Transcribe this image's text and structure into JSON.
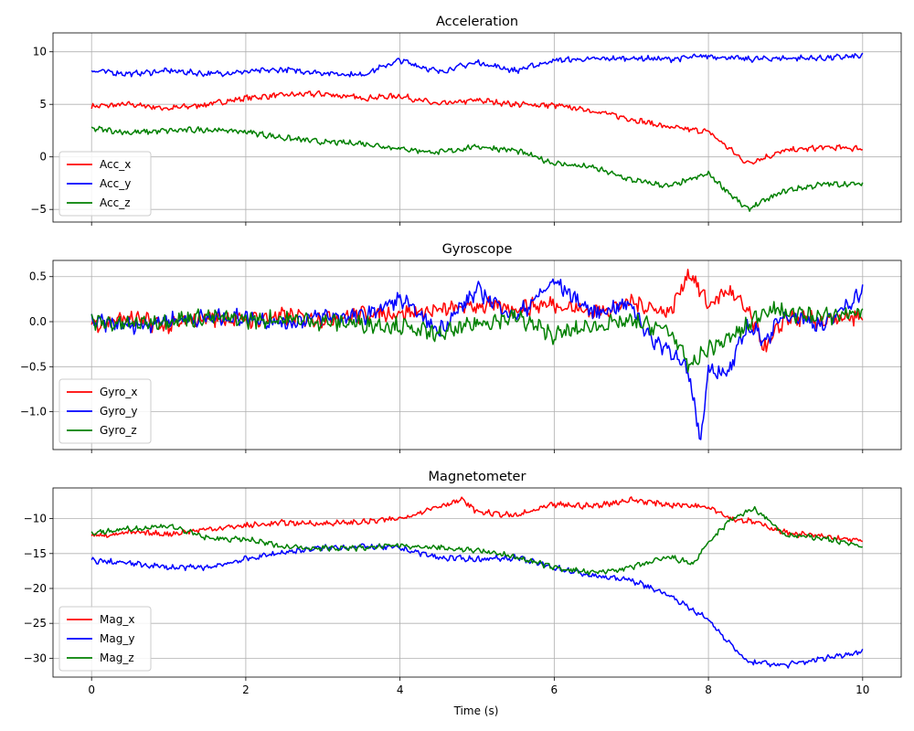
{
  "figure": {
    "xlabel": "Time (s)"
  },
  "chart_data": [
    {
      "type": "line",
      "title": "Acceleration",
      "xlim": [
        -0.5,
        10.5
      ],
      "ylim": [
        -6.2,
        11.8
      ],
      "xticks": [
        0,
        2,
        4,
        6,
        8,
        10
      ],
      "yticks": [
        -5,
        0,
        5,
        10
      ],
      "grid": true,
      "legend": "lower-left",
      "series": [
        {
          "name": "Acc_x",
          "color": "#ff0000",
          "x": [
            0,
            0.5,
            1,
            1.5,
            2,
            2.5,
            3,
            3.5,
            4,
            4.5,
            5,
            5.5,
            6,
            6.5,
            7,
            7.5,
            8,
            8.5,
            9,
            9.5,
            10
          ],
          "y": [
            4.8,
            5.0,
            4.6,
            5.0,
            5.6,
            5.9,
            6.0,
            5.6,
            5.8,
            5.0,
            5.4,
            5.0,
            4.9,
            4.4,
            3.6,
            2.8,
            2.4,
            -0.6,
            0.6,
            0.9,
            0.8
          ]
        },
        {
          "name": "Acc_y",
          "color": "#0000ff",
          "x": [
            0,
            0.5,
            1,
            1.5,
            2,
            2.5,
            3,
            3.5,
            4,
            4.5,
            5,
            5.5,
            6,
            6.5,
            7,
            7.5,
            8,
            8.5,
            9,
            9.5,
            10
          ],
          "y": [
            8.2,
            7.9,
            8.2,
            7.9,
            8.1,
            8.3,
            8.0,
            7.8,
            9.2,
            8.1,
            9.0,
            8.2,
            9.2,
            9.3,
            9.4,
            9.3,
            9.6,
            9.3,
            9.4,
            9.4,
            9.6
          ]
        },
        {
          "name": "Acc_z",
          "color": "#008000",
          "x": [
            0,
            0.5,
            1,
            1.5,
            2,
            2.5,
            3,
            3.5,
            4,
            4.5,
            5,
            5.5,
            6,
            6.5,
            7,
            7.5,
            8,
            8.5,
            9,
            9.5,
            10
          ],
          "y": [
            2.7,
            2.3,
            2.5,
            2.6,
            2.4,
            1.8,
            1.4,
            1.3,
            0.8,
            0.4,
            1.0,
            0.6,
            -0.6,
            -1.0,
            -2.2,
            -2.8,
            -1.6,
            -5.0,
            -3.2,
            -2.6,
            -2.6
          ]
        }
      ]
    },
    {
      "type": "line",
      "title": "Gyroscope",
      "xlim": [
        -0.5,
        10.5
      ],
      "ylim": [
        -1.42,
        0.68
      ],
      "xticks": [
        0,
        2,
        4,
        6,
        8,
        10
      ],
      "yticks": [
        -1.0,
        -0.5,
        0.0,
        0.5
      ],
      "ytick_labels": [
        "−1.0",
        "−0.5",
        "0.0",
        "0.5"
      ],
      "grid": true,
      "legend": "lower-left",
      "series": [
        {
          "name": "Gyro_x",
          "color": "#ff0000",
          "x": [
            0,
            0.5,
            1,
            1.5,
            2,
            2.5,
            3,
            3.5,
            4,
            4.5,
            5,
            5.5,
            6,
            6.5,
            7,
            7.5,
            7.75,
            8,
            8.25,
            8.5,
            8.75,
            9,
            9.5,
            10
          ],
          "y": [
            -0.02,
            0.04,
            -0.05,
            0.05,
            0.02,
            0.06,
            0.03,
            0.08,
            0.1,
            0.12,
            0.18,
            0.15,
            0.2,
            0.1,
            0.22,
            0.1,
            0.56,
            0.18,
            0.35,
            0.12,
            -0.3,
            0.05,
            0.0,
            0.05
          ]
        },
        {
          "name": "Gyro_y",
          "color": "#0000ff",
          "x": [
            0,
            0.5,
            1,
            1.5,
            2,
            2.5,
            3,
            3.5,
            4,
            4.5,
            5,
            5.5,
            6,
            6.5,
            7,
            7.25,
            7.5,
            7.75,
            7.9,
            8,
            8.25,
            8.5,
            8.75,
            9,
            9.5,
            10
          ],
          "y": [
            0.0,
            -0.05,
            0.02,
            0.04,
            0.05,
            -0.02,
            0.06,
            0.05,
            0.25,
            -0.1,
            0.35,
            0.05,
            0.45,
            0.1,
            0.2,
            -0.2,
            -0.3,
            -0.6,
            -1.32,
            -0.5,
            -0.6,
            -0.05,
            -0.2,
            0.1,
            -0.05,
            0.35
          ]
        },
        {
          "name": "Gyro_z",
          "color": "#008000",
          "x": [
            0,
            0.5,
            1,
            1.5,
            2,
            2.5,
            3,
            3.5,
            4,
            4.5,
            5,
            5.5,
            6,
            6.5,
            7,
            7.5,
            7.75,
            8,
            8.25,
            8.5,
            8.75,
            9,
            9.5,
            10
          ],
          "y": [
            0.0,
            -0.03,
            0.02,
            0.05,
            0.02,
            0.03,
            0.0,
            -0.02,
            -0.05,
            -0.15,
            -0.02,
            0.05,
            -0.15,
            -0.05,
            0.0,
            -0.1,
            -0.5,
            -0.3,
            -0.2,
            -0.05,
            0.15,
            0.1,
            0.05,
            0.12
          ]
        }
      ]
    },
    {
      "type": "line",
      "title": "Magnetometer",
      "xlim": [
        -0.5,
        10.5
      ],
      "ylim": [
        -32.7,
        -5.6
      ],
      "xticks": [
        0,
        2,
        4,
        6,
        8,
        10
      ],
      "yticks": [
        -30,
        -25,
        -20,
        -15,
        -10
      ],
      "ytick_labels": [
        "−30",
        "−25",
        "−20",
        "−15",
        "−10"
      ],
      "grid": true,
      "legend": "lower-left",
      "series": [
        {
          "name": "Mag_x",
          "color": "#ff0000",
          "x": [
            0,
            0.5,
            1,
            1.5,
            2,
            2.5,
            3,
            3.5,
            4,
            4.5,
            4.8,
            5,
            5.5,
            6,
            6.5,
            7,
            7.5,
            8,
            8.3,
            8.6,
            9,
            9.5,
            10
          ],
          "y": [
            -12.5,
            -12.0,
            -12.2,
            -11.5,
            -11.0,
            -10.6,
            -10.7,
            -10.5,
            -10.0,
            -8.2,
            -7.3,
            -9.0,
            -9.6,
            -8.0,
            -8.2,
            -7.3,
            -8.0,
            -8.2,
            -10.0,
            -10.5,
            -12.0,
            -12.6,
            -13.2
          ]
        },
        {
          "name": "Mag_y",
          "color": "#0000ff",
          "x": [
            0,
            0.5,
            1,
            1.5,
            2,
            2.5,
            3,
            3.5,
            4,
            4.5,
            5,
            5.5,
            6,
            6.5,
            7,
            7.5,
            8,
            8.5,
            9,
            9.5,
            10
          ],
          "y": [
            -16.0,
            -16.4,
            -17.0,
            -17.0,
            -15.8,
            -14.8,
            -14.2,
            -14.0,
            -14.2,
            -15.6,
            -15.8,
            -15.6,
            -17.0,
            -18.2,
            -18.8,
            -21.0,
            -24.5,
            -30.5,
            -31.0,
            -30.0,
            -29.0
          ]
        },
        {
          "name": "Mag_z",
          "color": "#008000",
          "x": [
            0,
            0.5,
            1,
            1.5,
            2,
            2.5,
            3,
            3.5,
            4,
            4.5,
            5,
            5.5,
            6,
            6.5,
            7,
            7.5,
            7.8,
            8,
            8.3,
            8.6,
            9,
            9.5,
            10
          ],
          "y": [
            -12.0,
            -11.5,
            -11.0,
            -12.8,
            -13.0,
            -14.0,
            -14.2,
            -14.2,
            -13.8,
            -14.2,
            -14.5,
            -15.5,
            -17.0,
            -17.8,
            -17.0,
            -15.5,
            -16.5,
            -13.5,
            -10.0,
            -8.6,
            -12.4,
            -12.8,
            -14.0
          ]
        }
      ]
    }
  ]
}
